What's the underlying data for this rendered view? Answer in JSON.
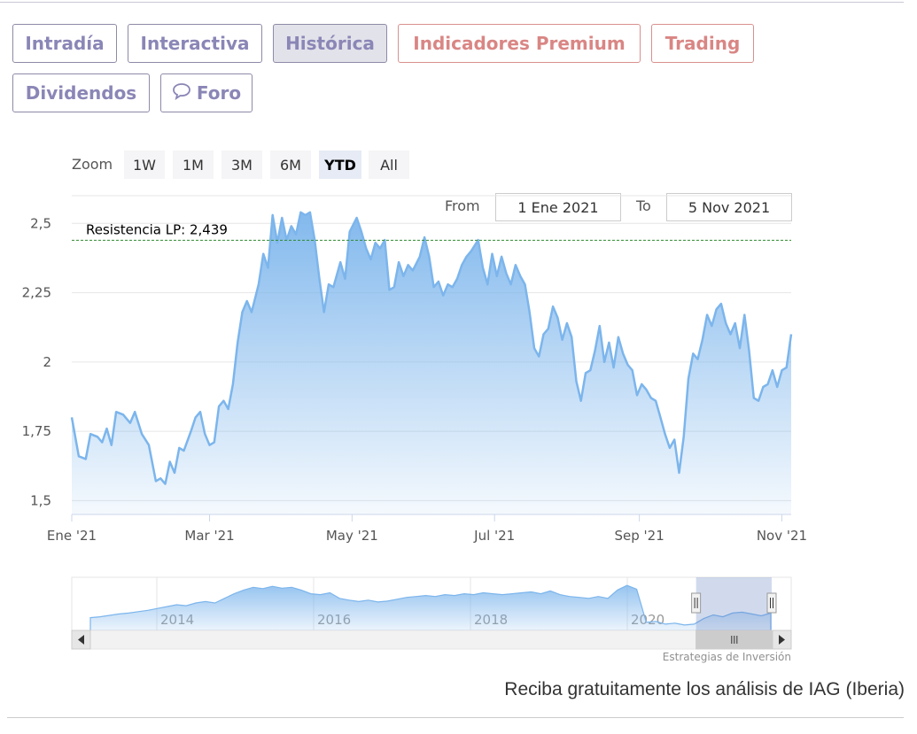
{
  "tabs": [
    {
      "label": "Intradía",
      "style": "normal"
    },
    {
      "label": "Interactiva",
      "style": "normal"
    },
    {
      "label": "Histórica",
      "style": "active"
    },
    {
      "label": "Indicadores Premium",
      "style": "premium"
    },
    {
      "label": "Trading",
      "style": "premium"
    },
    {
      "label": "Dividendos",
      "style": "normal"
    },
    {
      "label": "Foro",
      "style": "normal",
      "icon": "speech-bubble-icon"
    }
  ],
  "range_selector": {
    "zoom_label": "Zoom",
    "buttons": [
      "1W",
      "1M",
      "3M",
      "6M",
      "YTD",
      "All"
    ],
    "selected": "YTD",
    "from_label": "From",
    "from_value": "1 Ene 2021",
    "to_label": "To",
    "to_value": "5 Nov 2021"
  },
  "chart_data": {
    "type": "area",
    "title": "",
    "xlabel": "",
    "ylabel": "",
    "x_range": [
      "2021-01-01",
      "2021-11-05"
    ],
    "ylim": [
      1.45,
      2.6
    ],
    "y_ticks": [
      1.5,
      1.75,
      2,
      2.25,
      2.5
    ],
    "y_tick_labels": [
      "1,5",
      "1,75",
      "2",
      "2,25",
      "2,5"
    ],
    "x_ticks": [
      {
        "date": "2021-01-01",
        "label": "Ene '21"
      },
      {
        "date": "2021-03-01",
        "label": "Mar '21"
      },
      {
        "date": "2021-05-01",
        "label": "May '21"
      },
      {
        "date": "2021-07-01",
        "label": "Jul '21"
      },
      {
        "date": "2021-09-01",
        "label": "Sep '21"
      },
      {
        "date": "2021-11-01",
        "label": "Nov '21"
      }
    ],
    "grid": "horizontal",
    "line_color": "#7cb5ec",
    "resistance": {
      "value": 2.439,
      "label": "Resistencia LP: 2,439",
      "color": "#2e8b2e"
    },
    "series": [
      {
        "values": [
          [
            "2021-01-01",
            1.8
          ],
          [
            "2021-01-04",
            1.66
          ],
          [
            "2021-01-07",
            1.65
          ],
          [
            "2021-01-09",
            1.74
          ],
          [
            "2021-01-12",
            1.73
          ],
          [
            "2021-01-14",
            1.71
          ],
          [
            "2021-01-16",
            1.76
          ],
          [
            "2021-01-18",
            1.7
          ],
          [
            "2021-01-20",
            1.82
          ],
          [
            "2021-01-23",
            1.81
          ],
          [
            "2021-01-26",
            1.78
          ],
          [
            "2021-01-28",
            1.82
          ],
          [
            "2021-01-31",
            1.74
          ],
          [
            "2021-02-03",
            1.7
          ],
          [
            "2021-02-06",
            1.57
          ],
          [
            "2021-02-08",
            1.58
          ],
          [
            "2021-02-10",
            1.56
          ],
          [
            "2021-02-12",
            1.64
          ],
          [
            "2021-02-14",
            1.6
          ],
          [
            "2021-02-16",
            1.69
          ],
          [
            "2021-02-18",
            1.68
          ],
          [
            "2021-02-21",
            1.75
          ],
          [
            "2021-02-23",
            1.8
          ],
          [
            "2021-02-25",
            1.82
          ],
          [
            "2021-02-27",
            1.74
          ],
          [
            "2021-03-01",
            1.7
          ],
          [
            "2021-03-03",
            1.71
          ],
          [
            "2021-03-05",
            1.84
          ],
          [
            "2021-03-07",
            1.86
          ],
          [
            "2021-03-09",
            1.83
          ],
          [
            "2021-03-11",
            1.92
          ],
          [
            "2021-03-13",
            2.07
          ],
          [
            "2021-03-15",
            2.18
          ],
          [
            "2021-03-17",
            2.22
          ],
          [
            "2021-03-19",
            2.18
          ],
          [
            "2021-03-22",
            2.28
          ],
          [
            "2021-03-24",
            2.39
          ],
          [
            "2021-03-26",
            2.34
          ],
          [
            "2021-03-28",
            2.53
          ],
          [
            "2021-03-30",
            2.43
          ],
          [
            "2021-04-01",
            2.52
          ],
          [
            "2021-04-03",
            2.44
          ],
          [
            "2021-04-05",
            2.49
          ],
          [
            "2021-04-07",
            2.46
          ],
          [
            "2021-04-09",
            2.54
          ],
          [
            "2021-04-11",
            2.53
          ],
          [
            "2021-04-13",
            2.54
          ],
          [
            "2021-04-15",
            2.44
          ],
          [
            "2021-04-17",
            2.3
          ],
          [
            "2021-04-19",
            2.18
          ],
          [
            "2021-04-21",
            2.28
          ],
          [
            "2021-04-23",
            2.27
          ],
          [
            "2021-04-26",
            2.36
          ],
          [
            "2021-04-28",
            2.3
          ],
          [
            "2021-04-30",
            2.47
          ],
          [
            "2021-05-03",
            2.52
          ],
          [
            "2021-05-05",
            2.47
          ],
          [
            "2021-05-07",
            2.41
          ],
          [
            "2021-05-09",
            2.37
          ],
          [
            "2021-05-11",
            2.43
          ],
          [
            "2021-05-13",
            2.41
          ],
          [
            "2021-05-15",
            2.44
          ],
          [
            "2021-05-17",
            2.26
          ],
          [
            "2021-05-19",
            2.27
          ],
          [
            "2021-05-21",
            2.36
          ],
          [
            "2021-05-23",
            2.31
          ],
          [
            "2021-05-25",
            2.35
          ],
          [
            "2021-05-27",
            2.33
          ],
          [
            "2021-05-30",
            2.38
          ],
          [
            "2021-06-01",
            2.45
          ],
          [
            "2021-06-03",
            2.38
          ],
          [
            "2021-06-05",
            2.27
          ],
          [
            "2021-06-07",
            2.29
          ],
          [
            "2021-06-09",
            2.24
          ],
          [
            "2021-06-11",
            2.28
          ],
          [
            "2021-06-13",
            2.27
          ],
          [
            "2021-06-15",
            2.3
          ],
          [
            "2021-06-17",
            2.35
          ],
          [
            "2021-06-19",
            2.38
          ],
          [
            "2021-06-21",
            2.4
          ],
          [
            "2021-06-24",
            2.44
          ],
          [
            "2021-06-26",
            2.34
          ],
          [
            "2021-06-28",
            2.28
          ],
          [
            "2021-06-30",
            2.39
          ],
          [
            "2021-07-02",
            2.31
          ],
          [
            "2021-07-04",
            2.38
          ],
          [
            "2021-07-06",
            2.32
          ],
          [
            "2021-07-08",
            2.28
          ],
          [
            "2021-07-10",
            2.35
          ],
          [
            "2021-07-12",
            2.31
          ],
          [
            "2021-07-14",
            2.28
          ],
          [
            "2021-07-16",
            2.18
          ],
          [
            "2021-07-18",
            2.05
          ],
          [
            "2021-07-20",
            2.02
          ],
          [
            "2021-07-22",
            2.1
          ],
          [
            "2021-07-24",
            2.12
          ],
          [
            "2021-07-26",
            2.2
          ],
          [
            "2021-07-28",
            2.16
          ],
          [
            "2021-07-30",
            2.08
          ],
          [
            "2021-08-01",
            2.14
          ],
          [
            "2021-08-03",
            2.09
          ],
          [
            "2021-08-05",
            1.93
          ],
          [
            "2021-08-07",
            1.86
          ],
          [
            "2021-08-09",
            1.96
          ],
          [
            "2021-08-11",
            1.97
          ],
          [
            "2021-08-13",
            2.04
          ],
          [
            "2021-08-15",
            2.13
          ],
          [
            "2021-08-17",
            2.0
          ],
          [
            "2021-08-19",
            2.07
          ],
          [
            "2021-08-21",
            1.98
          ],
          [
            "2021-08-23",
            2.09
          ],
          [
            "2021-08-25",
            2.03
          ],
          [
            "2021-08-27",
            1.99
          ],
          [
            "2021-08-29",
            1.97
          ],
          [
            "2021-08-31",
            1.88
          ],
          [
            "2021-09-02",
            1.92
          ],
          [
            "2021-09-04",
            1.9
          ],
          [
            "2021-09-06",
            1.87
          ],
          [
            "2021-09-08",
            1.86
          ],
          [
            "2021-09-10",
            1.8
          ],
          [
            "2021-09-12",
            1.74
          ],
          [
            "2021-09-14",
            1.69
          ],
          [
            "2021-09-16",
            1.72
          ],
          [
            "2021-09-18",
            1.6
          ],
          [
            "2021-09-20",
            1.73
          ],
          [
            "2021-09-22",
            1.94
          ],
          [
            "2021-09-24",
            2.03
          ],
          [
            "2021-09-26",
            2.01
          ],
          [
            "2021-09-28",
            2.08
          ],
          [
            "2021-09-30",
            2.17
          ],
          [
            "2021-10-02",
            2.13
          ],
          [
            "2021-10-04",
            2.19
          ],
          [
            "2021-10-06",
            2.21
          ],
          [
            "2021-10-08",
            2.14
          ],
          [
            "2021-10-10",
            2.1
          ],
          [
            "2021-10-12",
            2.14
          ],
          [
            "2021-10-14",
            2.05
          ],
          [
            "2021-10-16",
            2.17
          ],
          [
            "2021-10-18",
            2.04
          ],
          [
            "2021-10-20",
            1.87
          ],
          [
            "2021-10-22",
            1.86
          ],
          [
            "2021-10-24",
            1.91
          ],
          [
            "2021-10-26",
            1.92
          ],
          [
            "2021-10-28",
            1.97
          ],
          [
            "2021-10-30",
            1.91
          ],
          [
            "2021-11-01",
            1.97
          ],
          [
            "2021-11-03",
            1.98
          ],
          [
            "2021-11-05",
            2.1
          ]
        ]
      }
    ]
  },
  "navigator": {
    "year_labels": [
      "2014",
      "2016",
      "2018",
      "2020"
    ],
    "values": [
      0.2,
      0.22,
      0.25,
      0.28,
      0.3,
      0.33,
      0.36,
      0.4,
      0.44,
      0.48,
      0.46,
      0.52,
      0.55,
      0.52,
      0.62,
      0.72,
      0.8,
      0.86,
      0.83,
      0.88,
      0.84,
      0.86,
      0.8,
      0.72,
      0.7,
      0.74,
      0.62,
      0.58,
      0.55,
      0.58,
      0.54,
      0.56,
      0.6,
      0.64,
      0.66,
      0.68,
      0.66,
      0.7,
      0.68,
      0.72,
      0.7,
      0.74,
      0.72,
      0.7,
      0.72,
      0.74,
      0.76,
      0.72,
      0.78,
      0.7,
      0.66,
      0.64,
      0.62,
      0.66,
      0.62,
      0.8,
      0.9,
      0.82,
      0.1,
      0.12,
      0.06,
      0.08,
      0.04,
      0.06,
      0.18,
      0.26,
      0.22,
      0.3,
      0.32,
      0.28,
      0.24,
      0.3
    ],
    "selection_start_fraction": 0.885,
    "selection_end_fraction": 1.0,
    "scroll_left_icon": "triangle-left-icon",
    "scroll_right_icon": "triangle-right-icon",
    "grip_icon": "grip-icon"
  },
  "credits": "Estrategias de Inversión",
  "cta": "Reciba gratuitamente los análisis de IAG (Iberia)"
}
